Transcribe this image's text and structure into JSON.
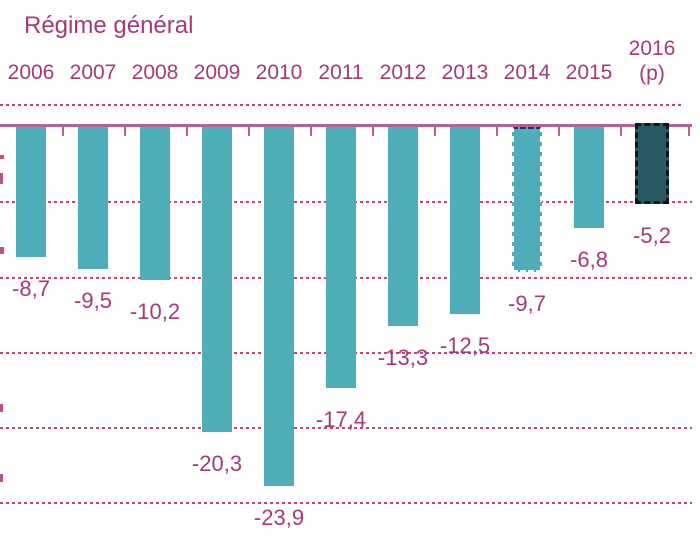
{
  "title": "Régime général",
  "colors": {
    "bar": "#4fadba",
    "bar_final": "#295961",
    "text": "#a23a7c",
    "axis_line": "#b4619a",
    "gridline": "#bf4381",
    "dashed_bar_top_border": "#17375e",
    "final_bar_border": "#141414"
  },
  "chart_data": {
    "type": "bar",
    "title": "Régime général",
    "categories": [
      "2006",
      "2007",
      "2008",
      "2009",
      "2010",
      "2011",
      "2012",
      "2013",
      "2014",
      "2015",
      "2016 (p)"
    ],
    "values": [
      -8.7,
      -9.5,
      -10.2,
      -20.3,
      -23.9,
      -17.4,
      -13.3,
      -12.5,
      -9.7,
      -6.8,
      -5.2
    ],
    "value_labels": [
      "-8,7",
      "-9,5",
      "-10,2",
      "-20,3",
      "-23,9",
      "-17,4",
      "-13,3",
      "-12,5",
      "-9,7",
      "-6,8",
      "-5,2"
    ],
    "bar_styles": [
      "solid",
      "solid",
      "solid",
      "solid",
      "solid",
      "solid",
      "solid",
      "solid",
      "dashed-outline",
      "solid",
      "dark-dashed-outline"
    ],
    "gridline_values": [
      -5,
      -10,
      -15,
      -20,
      -25
    ],
    "grid": "horizontal-dashed",
    "legend": "none",
    "xlabel": "",
    "ylabel": "",
    "ylim": [
      -26.8,
      1.4
    ],
    "category_axis_position": "top",
    "decimal_separator": ","
  }
}
